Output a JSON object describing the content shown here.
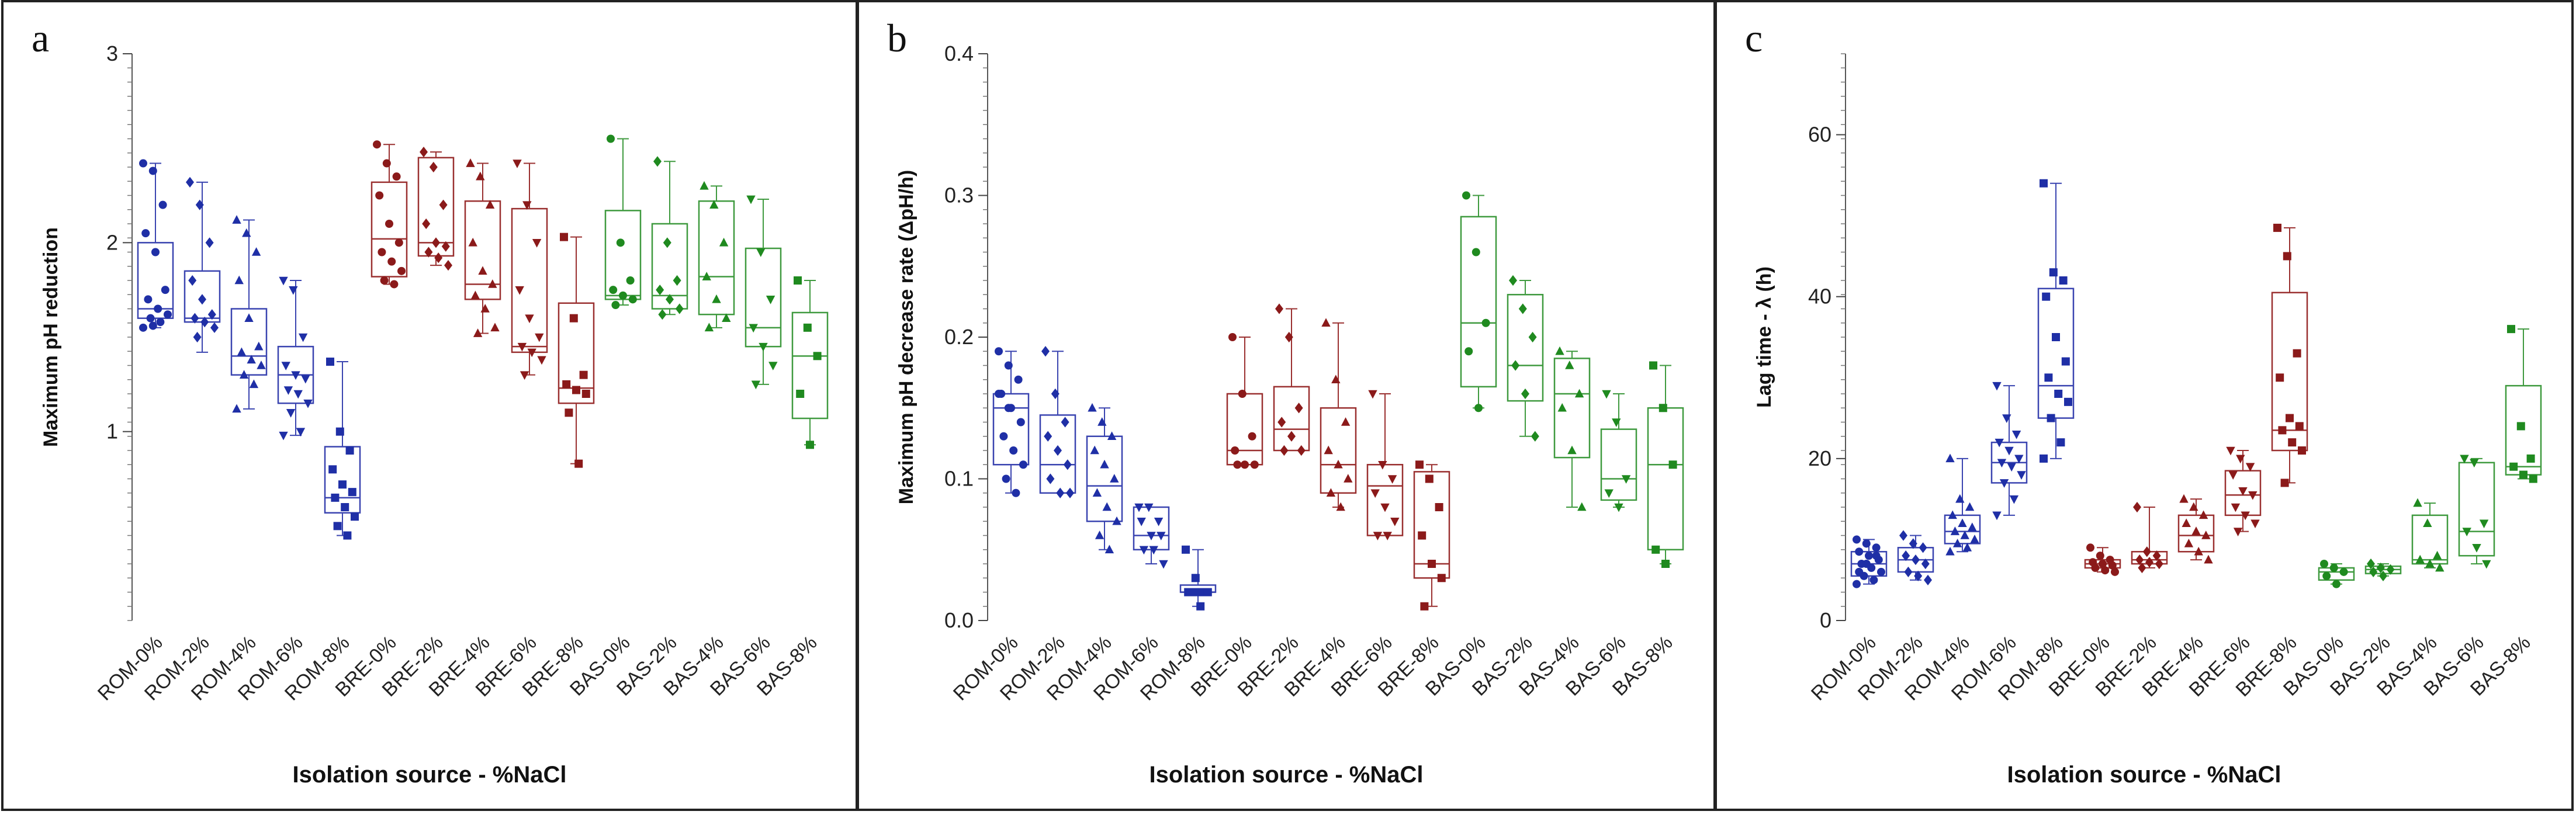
{
  "figure": {
    "xlabel": "Isolation source - %NaCl"
  },
  "chart_data": [
    {
      "panel": "a",
      "type": "box",
      "title": "",
      "xlabel": "Isolation source - %NaCl",
      "ylabel": "Maximum pH reduction",
      "ylim": [
        0,
        3
      ],
      "yticks": [
        "1",
        "2",
        "3"
      ],
      "ytick_values": [
        1,
        2,
        3
      ],
      "categories": [
        "ROM-0%",
        "ROM-2%",
        "ROM-4%",
        "ROM-6%",
        "ROM-8%",
        "BRE-0%",
        "BRE-2%",
        "BRE-4%",
        "BRE-6%",
        "BRE-8%",
        "BAS-0%",
        "BAS-2%",
        "BAS-4%",
        "BAS-6%",
        "BAS-8%"
      ],
      "boxes": [
        {
          "min": 1.55,
          "q1": 1.6,
          "median": 1.65,
          "q3": 2.0,
          "max": 2.42,
          "points": [
            2.42,
            2.38,
            2.2,
            2.05,
            1.95,
            1.75,
            1.7,
            1.65,
            1.62,
            1.6,
            1.58,
            1.55,
            1.56
          ]
        },
        {
          "min": 1.42,
          "q1": 1.58,
          "median": 1.6,
          "q3": 1.85,
          "max": 2.32,
          "points": [
            2.32,
            2.2,
            2.0,
            1.8,
            1.7,
            1.62,
            1.6,
            1.58,
            1.55,
            1.5
          ]
        },
        {
          "min": 1.12,
          "q1": 1.3,
          "median": 1.4,
          "q3": 1.65,
          "max": 2.12,
          "points": [
            2.12,
            2.05,
            1.95,
            1.8,
            1.6,
            1.45,
            1.42,
            1.38,
            1.35,
            1.3,
            1.25,
            1.12
          ]
        },
        {
          "min": 0.98,
          "q1": 1.15,
          "median": 1.3,
          "q3": 1.45,
          "max": 1.8,
          "points": [
            1.8,
            1.75,
            1.5,
            1.35,
            1.3,
            1.28,
            1.22,
            1.2,
            1.15,
            1.1,
            1.0,
            0.98
          ]
        },
        {
          "min": 0.45,
          "q1": 0.57,
          "median": 0.65,
          "q3": 0.92,
          "max": 1.37,
          "points": [
            1.37,
            1.0,
            0.9,
            0.8,
            0.72,
            0.68,
            0.65,
            0.6,
            0.55,
            0.5,
            0.45
          ]
        },
        {
          "min": 1.78,
          "q1": 1.82,
          "median": 2.02,
          "q3": 2.32,
          "max": 2.52,
          "points": [
            2.52,
            2.42,
            2.35,
            2.25,
            2.1,
            2.0,
            1.95,
            1.9,
            1.85,
            1.8,
            1.78
          ]
        },
        {
          "min": 1.88,
          "q1": 1.93,
          "median": 2.0,
          "q3": 2.45,
          "max": 2.48,
          "points": [
            2.48,
            2.4,
            2.2,
            2.1,
            2.0,
            1.98,
            1.95,
            1.92,
            1.88
          ]
        },
        {
          "min": 1.52,
          "q1": 1.7,
          "median": 1.78,
          "q3": 2.22,
          "max": 2.42,
          "points": [
            2.42,
            2.35,
            2.2,
            2.0,
            1.85,
            1.78,
            1.72,
            1.65,
            1.55,
            1.52
          ]
        },
        {
          "min": 1.3,
          "q1": 1.42,
          "median": 1.45,
          "q3": 2.18,
          "max": 2.42,
          "points": [
            2.42,
            2.2,
            2.0,
            1.75,
            1.6,
            1.5,
            1.45,
            1.42,
            1.38,
            1.3
          ]
        },
        {
          "min": 0.83,
          "q1": 1.15,
          "median": 1.23,
          "q3": 1.68,
          "max": 2.03,
          "points": [
            2.03,
            1.6,
            1.3,
            1.25,
            1.22,
            1.2,
            1.1,
            0.83
          ]
        },
        {
          "min": 1.67,
          "q1": 1.7,
          "median": 1.72,
          "q3": 2.17,
          "max": 2.55,
          "points": [
            2.55,
            2.0,
            1.8,
            1.75,
            1.72,
            1.7,
            1.67
          ]
        },
        {
          "min": 1.62,
          "q1": 1.65,
          "median": 1.72,
          "q3": 2.1,
          "max": 2.43,
          "points": [
            2.43,
            2.0,
            1.8,
            1.75,
            1.7,
            1.65,
            1.62
          ]
        },
        {
          "min": 1.55,
          "q1": 1.62,
          "median": 1.82,
          "q3": 2.22,
          "max": 2.3,
          "points": [
            2.3,
            2.2,
            2.0,
            1.82,
            1.7,
            1.6,
            1.55
          ]
        },
        {
          "min": 1.25,
          "q1": 1.45,
          "median": 1.55,
          "q3": 1.97,
          "max": 2.23,
          "points": [
            2.23,
            1.95,
            1.7,
            1.55,
            1.45,
            1.35,
            1.25
          ]
        },
        {
          "min": 0.93,
          "q1": 1.07,
          "median": 1.4,
          "q3": 1.63,
          "max": 1.8,
          "points": [
            1.8,
            1.55,
            1.4,
            1.2,
            0.93
          ]
        }
      ]
    },
    {
      "panel": "b",
      "type": "box",
      "title": "",
      "xlabel": "Isolation source - %NaCl",
      "ylabel": "Maximum pH decrease rate (ΔpH/h)",
      "ylim": [
        0,
        0.4
      ],
      "yticks": [
        "0.0",
        "0.1",
        "0.2",
        "0.3",
        "0.4"
      ],
      "ytick_values": [
        0,
        0.1,
        0.2,
        0.3,
        0.4
      ],
      "categories": [
        "ROM-0%",
        "ROM-2%",
        "ROM-4%",
        "ROM-6%",
        "ROM-8%",
        "BRE-0%",
        "BRE-2%",
        "BRE-4%",
        "BRE-6%",
        "BRE-8%",
        "BAS-0%",
        "BAS-2%",
        "BAS-4%",
        "BAS-6%",
        "BAS-8%"
      ],
      "boxes": [
        {
          "min": 0.09,
          "q1": 0.11,
          "median": 0.15,
          "q3": 0.16,
          "max": 0.19,
          "points": [
            0.19,
            0.18,
            0.17,
            0.16,
            0.15,
            0.14,
            0.13,
            0.12,
            0.11,
            0.1,
            0.09,
            0.16,
            0.15
          ]
        },
        {
          "min": 0.09,
          "q1": 0.09,
          "median": 0.11,
          "q3": 0.145,
          "max": 0.19,
          "points": [
            0.19,
            0.16,
            0.14,
            0.13,
            0.12,
            0.11,
            0.1,
            0.09,
            0.09
          ]
        },
        {
          "min": 0.05,
          "q1": 0.07,
          "median": 0.095,
          "q3": 0.13,
          "max": 0.15,
          "points": [
            0.15,
            0.14,
            0.13,
            0.12,
            0.11,
            0.1,
            0.09,
            0.08,
            0.07,
            0.06,
            0.05
          ]
        },
        {
          "min": 0.04,
          "q1": 0.05,
          "median": 0.06,
          "q3": 0.08,
          "max": 0.08,
          "points": [
            0.08,
            0.08,
            0.07,
            0.07,
            0.06,
            0.06,
            0.05,
            0.05,
            0.04
          ]
        },
        {
          "min": 0.01,
          "q1": 0.02,
          "median": 0.02,
          "q3": 0.025,
          "max": 0.05,
          "points": [
            0.05,
            0.03,
            0.02,
            0.02,
            0.02,
            0.02,
            0.02,
            0.01
          ]
        },
        {
          "min": 0.11,
          "q1": 0.11,
          "median": 0.12,
          "q3": 0.16,
          "max": 0.2,
          "points": [
            0.2,
            0.16,
            0.13,
            0.12,
            0.11,
            0.11,
            0.11
          ]
        },
        {
          "min": 0.12,
          "q1": 0.12,
          "median": 0.135,
          "q3": 0.165,
          "max": 0.22,
          "points": [
            0.22,
            0.2,
            0.15,
            0.14,
            0.13,
            0.12,
            0.12
          ]
        },
        {
          "min": 0.08,
          "q1": 0.09,
          "median": 0.11,
          "q3": 0.15,
          "max": 0.21,
          "points": [
            0.21,
            0.17,
            0.14,
            0.12,
            0.11,
            0.1,
            0.09,
            0.08
          ]
        },
        {
          "min": 0.06,
          "q1": 0.06,
          "median": 0.095,
          "q3": 0.11,
          "max": 0.16,
          "points": [
            0.16,
            0.11,
            0.1,
            0.09,
            0.08,
            0.07,
            0.06,
            0.06
          ]
        },
        {
          "min": 0.01,
          "q1": 0.03,
          "median": 0.04,
          "q3": 0.105,
          "max": 0.11,
          "points": [
            0.11,
            0.1,
            0.08,
            0.06,
            0.04,
            0.03,
            0.01
          ]
        },
        {
          "min": 0.15,
          "q1": 0.165,
          "median": 0.21,
          "q3": 0.285,
          "max": 0.3,
          "points": [
            0.3,
            0.26,
            0.21,
            0.19,
            0.15
          ]
        },
        {
          "min": 0.13,
          "q1": 0.155,
          "median": 0.18,
          "q3": 0.23,
          "max": 0.24,
          "points": [
            0.24,
            0.22,
            0.2,
            0.18,
            0.16,
            0.13
          ]
        },
        {
          "min": 0.08,
          "q1": 0.115,
          "median": 0.16,
          "q3": 0.185,
          "max": 0.19,
          "points": [
            0.19,
            0.18,
            0.16,
            0.15,
            0.12,
            0.08
          ]
        },
        {
          "min": 0.08,
          "q1": 0.085,
          "median": 0.1,
          "q3": 0.135,
          "max": 0.16,
          "points": [
            0.16,
            0.14,
            0.1,
            0.09,
            0.08
          ]
        },
        {
          "min": 0.04,
          "q1": 0.05,
          "median": 0.11,
          "q3": 0.15,
          "max": 0.18,
          "points": [
            0.18,
            0.15,
            0.11,
            0.05,
            0.04
          ]
        }
      ]
    },
    {
      "panel": "c",
      "type": "box",
      "title": "",
      "xlabel": "Isolation source - %NaCl",
      "ylabel": "Lag time - λ (h)",
      "ylim": [
        0,
        70
      ],
      "yticks": [
        "0",
        "20",
        "40",
        "60"
      ],
      "ytick_values": [
        0,
        20,
        40,
        60
      ],
      "categories": [
        "ROM-0%",
        "ROM-2%",
        "ROM-4%",
        "ROM-6%",
        "ROM-8%",
        "BRE-0%",
        "BRE-2%",
        "BRE-4%",
        "BRE-6%",
        "BRE-8%",
        "BAS-0%",
        "BAS-2%",
        "BAS-4%",
        "BAS-6%",
        "BAS-8%"
      ],
      "boxes": [
        {
          "min": 4.5,
          "q1": 5.5,
          "median": 7,
          "q3": 8.5,
          "max": 10,
          "points": [
            10,
            9.5,
            9,
            8.5,
            8,
            7.5,
            7,
            6.5,
            6,
            5.5,
            5,
            4.5,
            7,
            8,
            6
          ]
        },
        {
          "min": 5,
          "q1": 6,
          "median": 7.5,
          "q3": 9,
          "max": 10.5,
          "points": [
            10.5,
            9.5,
            9,
            8,
            7.5,
            7,
            6,
            5.5,
            5
          ]
        },
        {
          "min": 8.5,
          "q1": 9.5,
          "median": 11,
          "q3": 13,
          "max": 20,
          "points": [
            20,
            15,
            14,
            13,
            12,
            11.5,
            11,
            10.5,
            10,
            9.5,
            9,
            8.5
          ]
        },
        {
          "min": 13,
          "q1": 17,
          "median": 19.5,
          "q3": 22,
          "max": 29,
          "points": [
            29,
            25,
            23,
            22,
            21,
            20,
            19.5,
            19,
            18,
            17,
            15,
            13
          ]
        },
        {
          "min": 20,
          "q1": 25,
          "median": 29,
          "q3": 41,
          "max": 54,
          "points": [
            54,
            43,
            42,
            40,
            35,
            32,
            30,
            28,
            27,
            25,
            22,
            20
          ]
        },
        {
          "min": 6,
          "q1": 6.5,
          "median": 7,
          "q3": 7.5,
          "max": 9,
          "points": [
            9,
            8,
            7.5,
            7.2,
            7,
            6.8,
            6.5,
            6.2,
            6
          ]
        },
        {
          "min": 6.5,
          "q1": 7,
          "median": 7.5,
          "q3": 8.5,
          "max": 14,
          "points": [
            14,
            8.5,
            8,
            7.5,
            7.2,
            7,
            6.5
          ]
        },
        {
          "min": 7.5,
          "q1": 8.5,
          "median": 10.5,
          "q3": 13,
          "max": 15,
          "points": [
            15,
            14,
            13,
            12,
            11,
            10.5,
            9.5,
            8.5,
            7.5
          ]
        },
        {
          "min": 11,
          "q1": 13,
          "median": 15.5,
          "q3": 18.5,
          "max": 21,
          "points": [
            21,
            20,
            19,
            18,
            16,
            15.5,
            14,
            13,
            12,
            11
          ]
        },
        {
          "min": 17,
          "q1": 21,
          "median": 23.5,
          "q3": 40.5,
          "max": 48.5,
          "points": [
            48.5,
            45,
            33,
            30,
            25,
            24,
            23.5,
            22,
            21,
            17
          ]
        },
        {
          "min": 4.5,
          "q1": 5,
          "median": 6,
          "q3": 6.5,
          "max": 7,
          "points": [
            7,
            6.5,
            6,
            5.5,
            4.5
          ]
        },
        {
          "min": 5.5,
          "q1": 5.8,
          "median": 6.3,
          "q3": 6.7,
          "max": 7,
          "points": [
            7,
            6.5,
            6.3,
            6,
            5.5
          ]
        },
        {
          "min": 6.5,
          "q1": 7,
          "median": 7.5,
          "q3": 13,
          "max": 14.5,
          "points": [
            14.5,
            12,
            8,
            7.5,
            7,
            6.5
          ]
        },
        {
          "min": 7,
          "q1": 8,
          "median": 11,
          "q3": 19.5,
          "max": 20,
          "points": [
            20,
            19.5,
            12,
            11,
            9,
            7
          ]
        },
        {
          "min": 17.5,
          "q1": 18,
          "median": 19,
          "q3": 29,
          "max": 36,
          "points": [
            36,
            24,
            20,
            19,
            18,
            17.5
          ]
        }
      ]
    }
  ]
}
